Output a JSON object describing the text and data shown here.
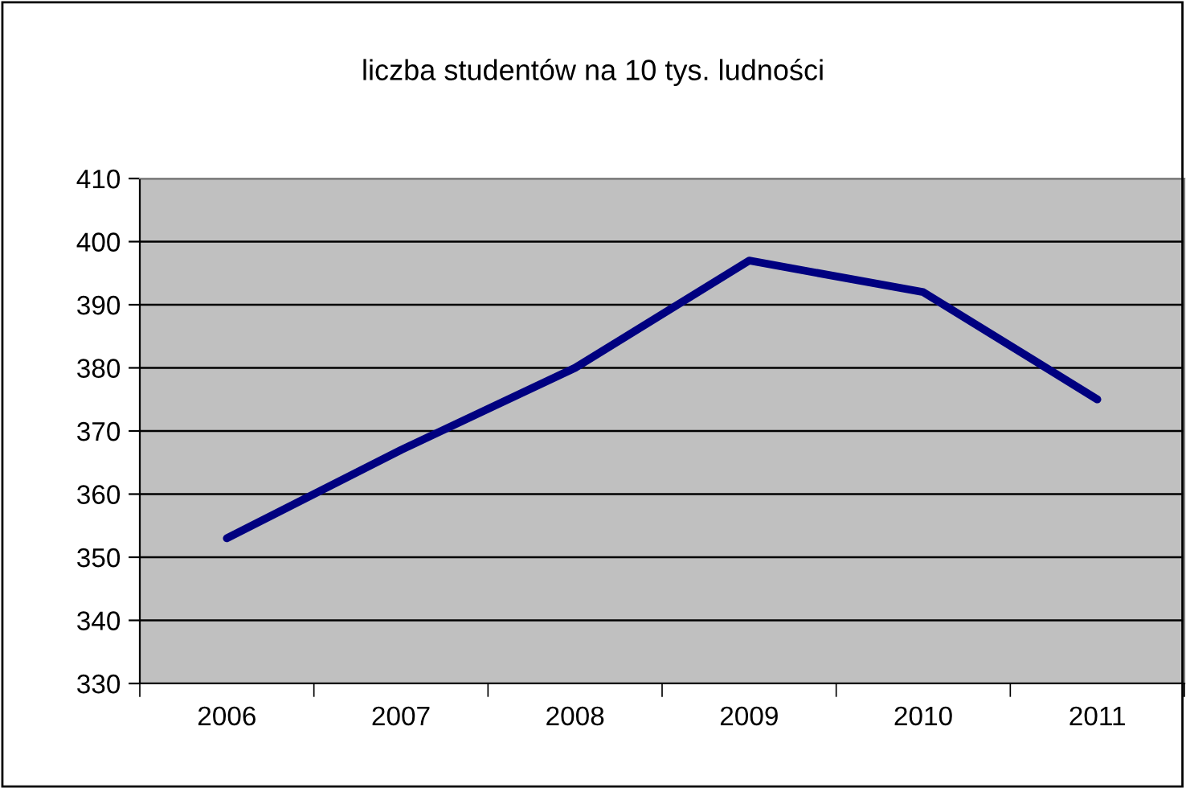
{
  "chart_data": {
    "type": "line",
    "title": "liczba studentów na 10 tys. ludności",
    "categories": [
      "2006",
      "2007",
      "2008",
      "2009",
      "2010",
      "2011"
    ],
    "series": [
      {
        "color": "#000080",
        "values": [
          353,
          367,
          380,
          397,
          392,
          375
        ]
      }
    ],
    "ylim": [
      330,
      410
    ],
    "yticks": [
      330,
      340,
      350,
      360,
      370,
      380,
      390,
      400,
      410
    ],
    "grid": "y",
    "legend": false,
    "marker": "none",
    "line_style": "solid"
  }
}
